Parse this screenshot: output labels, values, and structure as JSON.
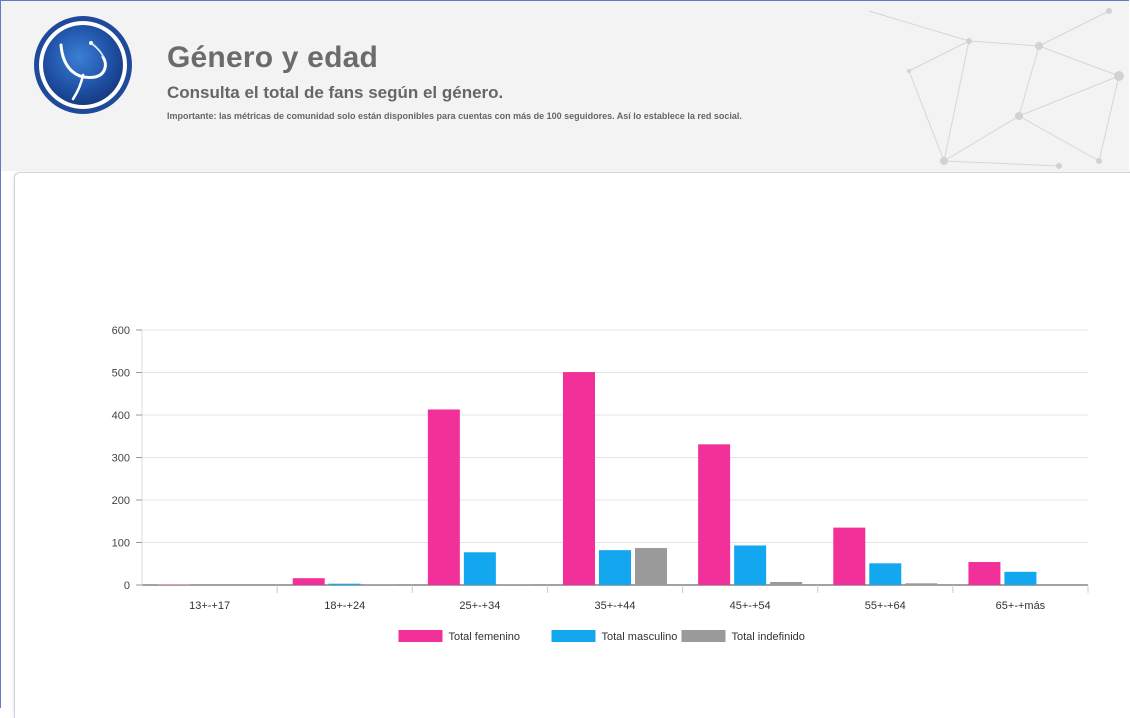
{
  "header": {
    "title": "Género y edad",
    "subtitle": "Consulta el total de fans según el género.",
    "note": "Importante: las métricas de comunidad solo están disponibles para cuentas con más de 100 seguidores. Así lo establece la red social."
  },
  "icons": {
    "logo": "circular-emblem-logo"
  },
  "colors": {
    "femenino": "#f2309a",
    "masculino": "#12a7ee",
    "indefinido": "#9a9a9a"
  },
  "chart_data": {
    "type": "bar",
    "categories": [
      "13+-+17",
      "18+-+24",
      "25+-+34",
      "35+-+44",
      "45+-+54",
      "55+-+64",
      "65+-+más"
    ],
    "series": [
      {
        "name": "Total femenino",
        "values": [
          1,
          16,
          413,
          501,
          331,
          135,
          54
        ]
      },
      {
        "name": "Total masculino",
        "values": [
          0,
          3,
          77,
          82,
          93,
          51,
          31
        ]
      },
      {
        "name": "Total indefinido",
        "values": [
          0,
          2,
          2,
          87,
          7,
          4,
          0
        ]
      }
    ],
    "ylim": [
      0,
      600
    ],
    "yticks": [
      "0",
      "100",
      "200",
      "300",
      "400",
      "500",
      "600"
    ],
    "grid": true,
    "legend_position": "bottom",
    "title": "",
    "xlabel": "",
    "ylabel": ""
  }
}
